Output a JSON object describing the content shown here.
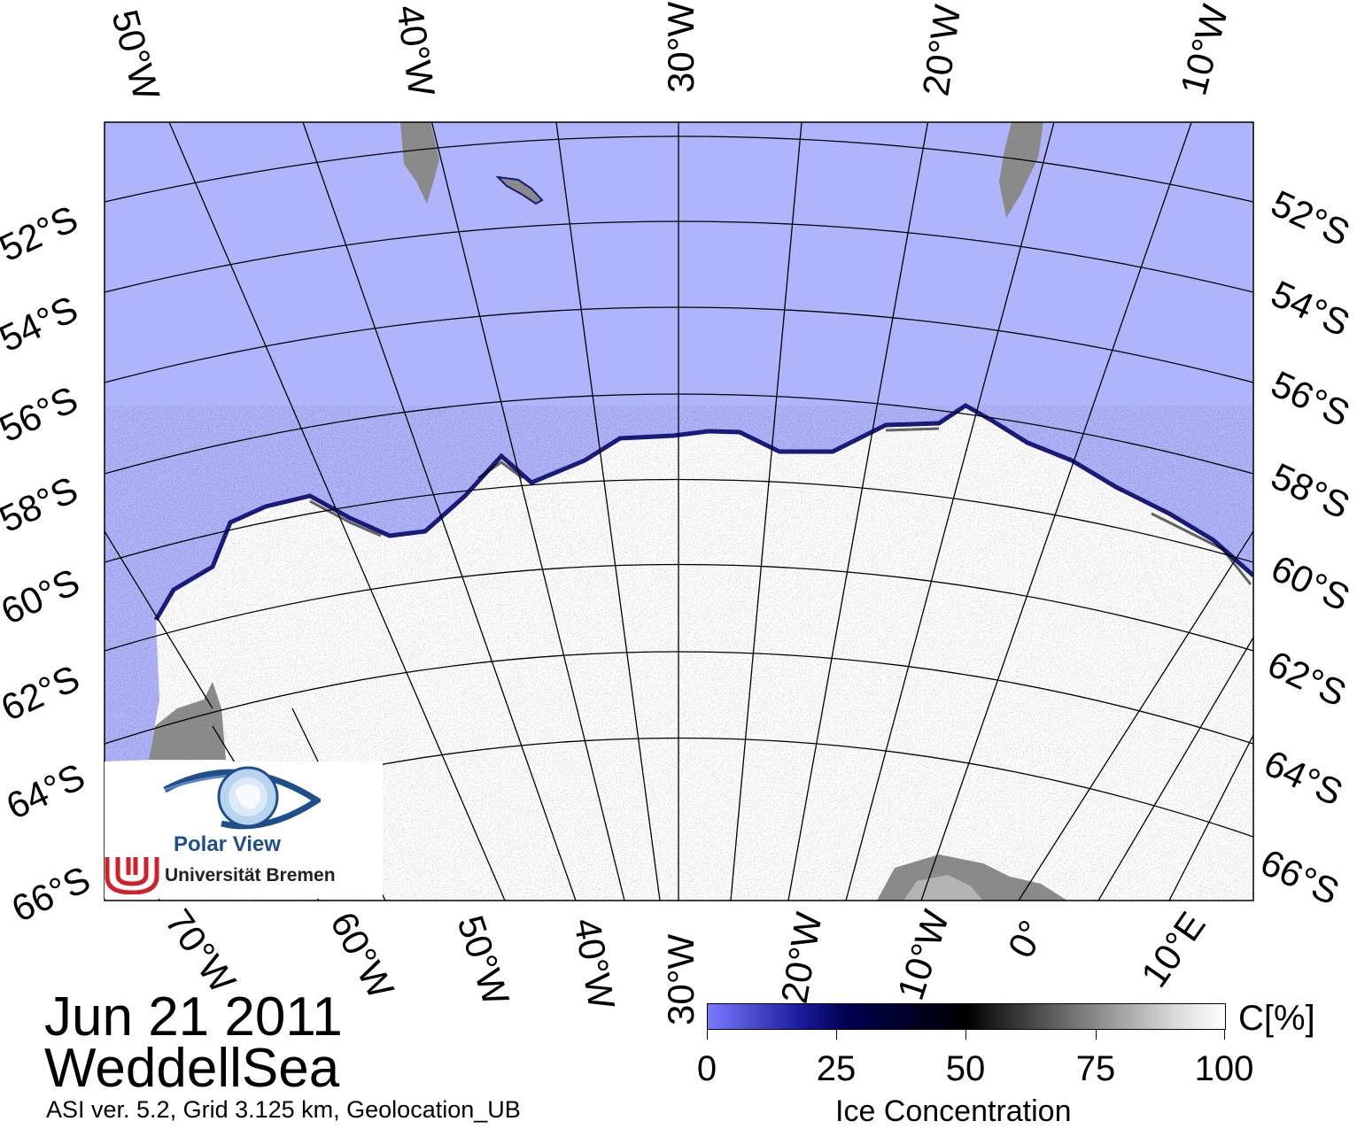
{
  "title": {
    "date": "Jun 21 2011",
    "region": "WeddellSea",
    "info": "ASI ver. 5.2,  Grid 3.125 km, Geolocation_UB"
  },
  "colorbar": {
    "unit": "C[%]",
    "title": "Ice Concentration",
    "ticks": [
      "0",
      "25",
      "50",
      "75",
      "100"
    ],
    "colors": [
      "#7a7aff",
      "#000050",
      "#000000",
      "#7a7a7a",
      "#ffffff"
    ]
  },
  "labels": {
    "top": [
      "50°W",
      "40°W",
      "30°W",
      "20°W",
      "10°W"
    ],
    "left": [
      "52°S",
      "54°S",
      "56°S",
      "58°S",
      "60°S",
      "62°S",
      "64°S",
      "66°S"
    ],
    "right": [
      "52°S",
      "54°S",
      "56°S",
      "58°S",
      "60°S",
      "62°S",
      "64°S",
      "66°S"
    ],
    "bottom": [
      "70°W",
      "60°W",
      "50°W",
      "40°W",
      "30°W",
      "20°W",
      "10°W",
      "0°",
      "10°E"
    ]
  },
  "logo": {
    "name": "Polar View",
    "institution": "Universität Bremen",
    "icon": "polar-view-eye-logo"
  },
  "colors": {
    "open_water": "#b0b4fa",
    "land": "#8a8a8a",
    "ice": "#ffffff"
  }
}
